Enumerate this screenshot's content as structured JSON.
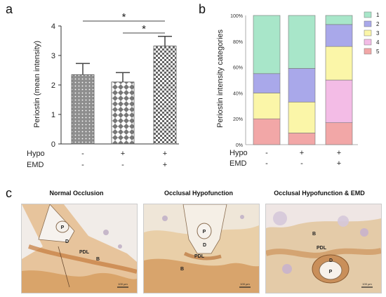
{
  "panels": {
    "a": "a",
    "b": "b",
    "c": "c"
  },
  "chart_data": [
    {
      "type": "bar",
      "ylabel": "Periostin (mean intensity)",
      "ylim": [
        0,
        4
      ],
      "yticks": [
        "0",
        "1",
        "2",
        "3",
        "4"
      ],
      "bars": [
        {
          "value": 2.35,
          "error": 0.38,
          "pattern": "dots"
        },
        {
          "value": 2.1,
          "error": 0.32,
          "pattern": "diamonds"
        },
        {
          "value": 3.32,
          "error": 0.33,
          "pattern": "checker"
        }
      ],
      "conditions": [
        {
          "name": "Hypo",
          "values": [
            "-",
            "+",
            "+"
          ]
        },
        {
          "name": "EMD",
          "values": [
            "-",
            "-",
            "+"
          ]
        }
      ],
      "significance": [
        {
          "from": 0,
          "to": 2,
          "label": "*"
        },
        {
          "from": 1,
          "to": 2,
          "label": "*"
        }
      ]
    },
    {
      "type": "bar",
      "stacked": true,
      "ylabel": "Periostin intensity categories",
      "yticks": [
        "0%",
        "20%",
        "40%",
        "60%",
        "80%",
        "100%"
      ],
      "legend_position": "right",
      "series": [
        {
          "name": "1",
          "color": "#a8e6c9",
          "values": [
            45,
            41,
            7
          ]
        },
        {
          "name": "2",
          "color": "#a9a8ea",
          "values": [
            15,
            26,
            17
          ]
        },
        {
          "name": "3",
          "color": "#fbf6a8",
          "values": [
            20,
            24,
            26
          ]
        },
        {
          "name": "4",
          "color": "#f3bce6",
          "values": [
            0,
            0,
            33
          ]
        },
        {
          "name": "5",
          "color": "#f2a7a7",
          "values": [
            20,
            9,
            17
          ]
        }
      ],
      "conditions": [
        {
          "name": "Hypo",
          "values": [
            "-",
            "+",
            "+"
          ]
        },
        {
          "name": "EMD",
          "values": [
            "-",
            "-",
            "+"
          ]
        }
      ]
    }
  ],
  "micrographs": [
    {
      "title": "Normal Occlusion",
      "labels": [
        "P",
        "D",
        "PDL",
        "B"
      ],
      "scale": "100 µm"
    },
    {
      "title": "Occlusal Hypofunction",
      "labels": [
        "P",
        "D",
        "PDL",
        "B"
      ],
      "scale": "100 µm"
    },
    {
      "title": "Occlusal Hypofunction & EMD",
      "labels": [
        "B",
        "PDL",
        "D",
        "P"
      ],
      "scale": "100 µm"
    }
  ]
}
